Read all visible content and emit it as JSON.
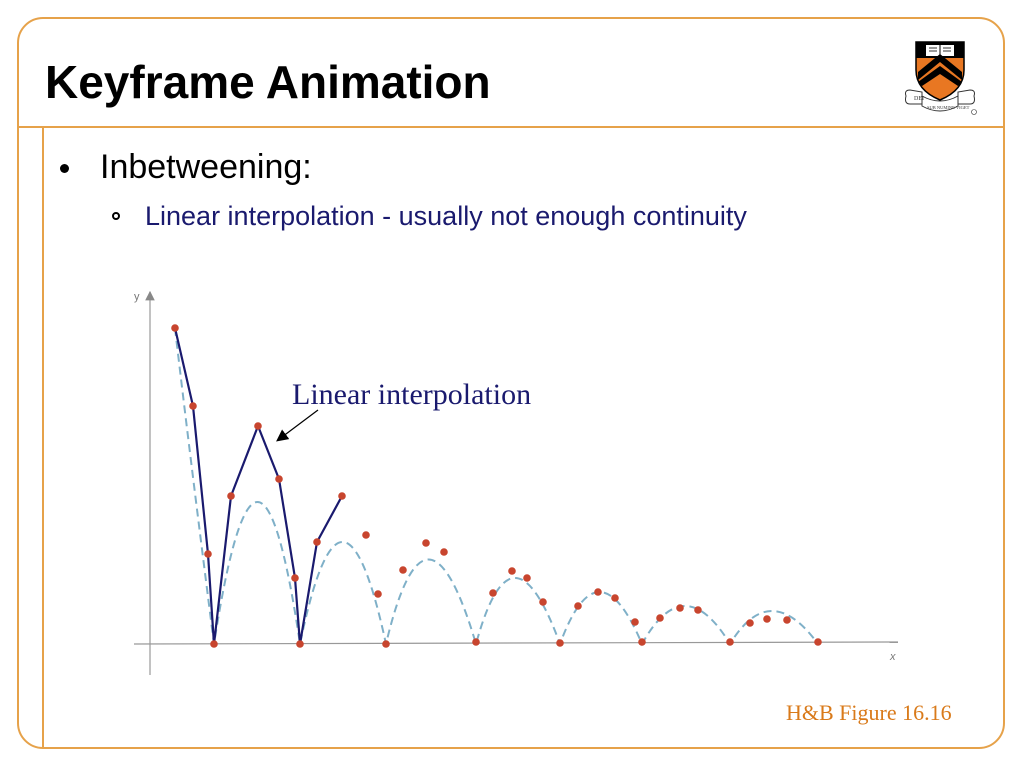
{
  "slide": {
    "title": "Keyframe Animation",
    "bullets": [
      {
        "text": "Inbetweening:",
        "sub": [
          {
            "text": "Linear interpolation - usually not enough continuity"
          }
        ]
      }
    ],
    "caption": "H&B Figure 16.16"
  },
  "figure": {
    "axis_x_label": "x",
    "axis_y_label": "y",
    "annotation": "Linear interpolation",
    "colors": {
      "frame": "#e6a24a",
      "linear": "#1a1a6e",
      "curve": "#7fb0c8",
      "points": "#c8452e",
      "caption": "#d97a1a"
    }
  },
  "logo": {
    "icon": "princeton-shield-icon",
    "motto_left": "DEI",
    "motto_right": "SUB NUMINE VIGET"
  }
}
